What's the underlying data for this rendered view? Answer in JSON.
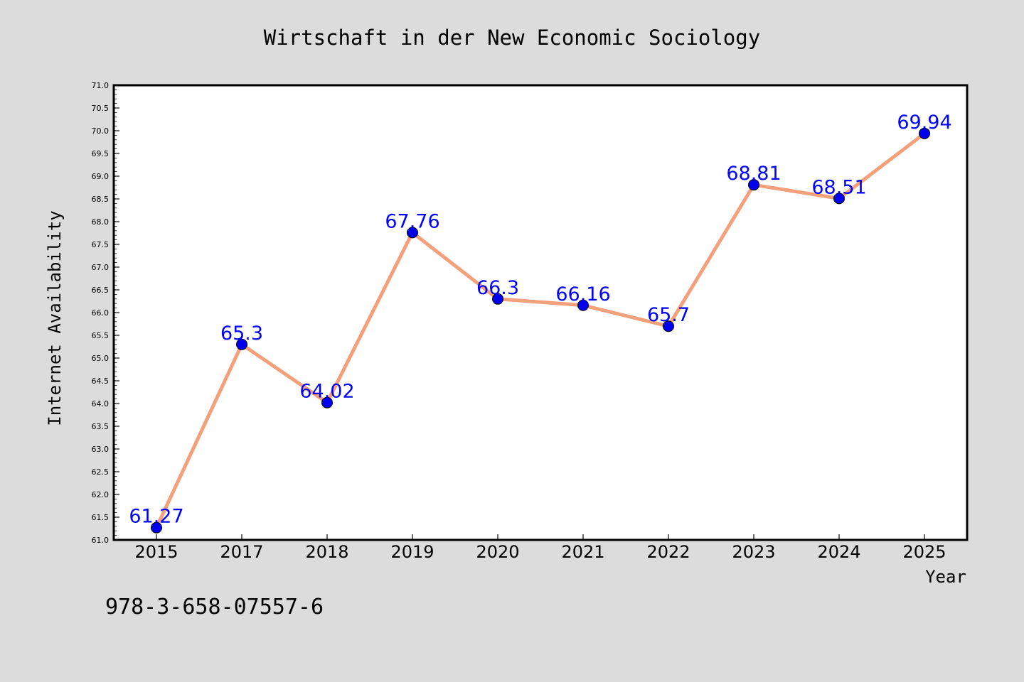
{
  "chart_data": {
    "type": "line",
    "title": "Wirtschaft in der New Economic Sociology",
    "xlabel": "Year",
    "ylabel": "Internet Availability",
    "categories": [
      "2015",
      "2017",
      "2018",
      "2019",
      "2020",
      "2021",
      "2022",
      "2023",
      "2024",
      "2025"
    ],
    "series": [
      {
        "values": [
          61.27,
          65.3,
          64.02,
          67.76,
          66.3,
          66.16,
          65.7,
          68.81,
          68.51,
          69.94
        ],
        "data_labels": [
          "61.27",
          "65.3",
          "64.02",
          "67.76",
          "66.3",
          "66.16",
          "65.7",
          "68.81",
          "68.51",
          "69.94"
        ],
        "line_color": "#f4a07a",
        "marker_color": "#0000ee",
        "label_color": "#0000ff"
      }
    ],
    "ylim": [
      61.0,
      71.0
    ],
    "yticks": [
      "61.0",
      "61.5",
      "62.0",
      "62.5",
      "63.0",
      "63.5",
      "64.0",
      "64.5",
      "65.0",
      "65.5",
      "66.0",
      "66.5",
      "67.0",
      "67.5",
      "68.0",
      "68.5",
      "69.0",
      "69.5",
      "70.0",
      "70.5",
      "71.0"
    ],
    "grid": false,
    "legend": "none"
  },
  "footer": {
    "code": "978-3-658-07557-6"
  },
  "colors": {
    "background": "#dcdcdc",
    "plot_background": "#ffffff",
    "frame": "#000000"
  }
}
